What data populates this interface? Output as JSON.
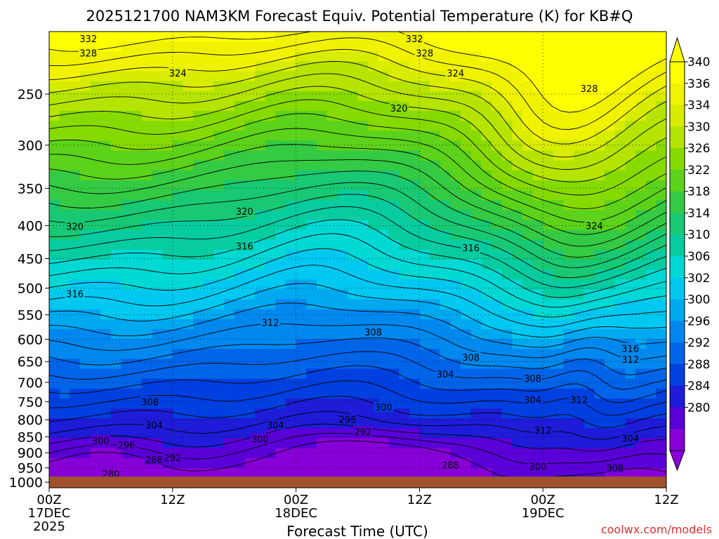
{
  "chart_data": {
    "type": "heatmap",
    "title": "2025121700 NAM3KM Forecast Equiv. Potential Temperature (K) for KB#Q",
    "xlabel": "Forecast Time (UTC)",
    "ylabel": "",
    "credit": "coolwx.com/models",
    "x_ticks": [
      {
        "hour": 0,
        "label": "00Z",
        "date": "17DEC",
        "year": "2025"
      },
      {
        "hour": 12,
        "label": "12Z",
        "date": "",
        "year": ""
      },
      {
        "hour": 24,
        "label": "00Z",
        "date": "18DEC",
        "year": ""
      },
      {
        "hour": 36,
        "label": "12Z",
        "date": "",
        "year": ""
      },
      {
        "hour": 48,
        "label": "00Z",
        "date": "19DEC",
        "year": ""
      },
      {
        "hour": 60,
        "label": "12Z",
        "date": "",
        "year": ""
      }
    ],
    "x_range_hours": [
      0,
      60
    ],
    "y_ticks": [
      250,
      300,
      350,
      400,
      450,
      500,
      550,
      600,
      650,
      700,
      750,
      800,
      850,
      900,
      950,
      1000
    ],
    "y_range_hpa": [
      200,
      1020
    ],
    "y_scale": "log-pressure",
    "colorbar": {
      "labels": [
        340,
        336,
        334,
        330,
        326,
        322,
        318,
        314,
        310,
        306,
        302,
        300,
        296,
        292,
        288,
        284,
        280
      ],
      "colors": [
        "#ffff00",
        "#f0f200",
        "#d8ec00",
        "#b4e400",
        "#86da00",
        "#5cd21a",
        "#34ca44",
        "#18c872",
        "#06cca0",
        "#00d8d4",
        "#00c8f0",
        "#00a8f0",
        "#0088ee",
        "#0064e8",
        "#0040e0",
        "#1e1cd8",
        "#5a00d8",
        "#8800d8"
      ],
      "extend": "both"
    },
    "contour_labels": [
      {
        "text": "332",
        "t": 3.8,
        "p": 205
      },
      {
        "text": "328",
        "t": 3.8,
        "p": 216
      },
      {
        "text": "324",
        "t": 12.5,
        "p": 232
      },
      {
        "text": "320",
        "t": 2.5,
        "p": 401
      },
      {
        "text": "316",
        "t": 2.5,
        "p": 510
      },
      {
        "text": "320",
        "t": 19.0,
        "p": 380
      },
      {
        "text": "316",
        "t": 19.0,
        "p": 430
      },
      {
        "text": "312",
        "t": 21.5,
        "p": 565
      },
      {
        "text": "308",
        "t": 9.8,
        "p": 750
      },
      {
        "text": "304",
        "t": 10.2,
        "p": 815
      },
      {
        "text": "300",
        "t": 5.0,
        "p": 862
      },
      {
        "text": "296",
        "t": 7.5,
        "p": 875
      },
      {
        "text": "288",
        "t": 10.2,
        "p": 923
      },
      {
        "text": "292",
        "t": 12.0,
        "p": 916
      },
      {
        "text": "280",
        "t": 6.0,
        "p": 970
      },
      {
        "text": "304",
        "t": 22.0,
        "p": 815
      },
      {
        "text": "300",
        "t": 20.5,
        "p": 857
      },
      {
        "text": "296",
        "t": 29.0,
        "p": 799
      },
      {
        "text": "292",
        "t": 30.5,
        "p": 835
      },
      {
        "text": "300",
        "t": 32.5,
        "p": 765
      },
      {
        "text": "308",
        "t": 31.5,
        "p": 585
      },
      {
        "text": "304",
        "t": 38.5,
        "p": 680
      },
      {
        "text": "308",
        "t": 41.0,
        "p": 640
      },
      {
        "text": "288",
        "t": 39.0,
        "p": 940
      },
      {
        "text": "332",
        "t": 35.5,
        "p": 205
      },
      {
        "text": "328",
        "t": 36.5,
        "p": 216
      },
      {
        "text": "324",
        "t": 39.5,
        "p": 232
      },
      {
        "text": "320",
        "t": 34.0,
        "p": 263
      },
      {
        "text": "316",
        "t": 41.0,
        "p": 433
      },
      {
        "text": "328",
        "t": 52.5,
        "p": 245
      },
      {
        "text": "324",
        "t": 53.0,
        "p": 400
      },
      {
        "text": "308",
        "t": 47.0,
        "p": 690
      },
      {
        "text": "304",
        "t": 47.0,
        "p": 745
      },
      {
        "text": "312",
        "t": 51.5,
        "p": 745
      },
      {
        "text": "312",
        "t": 48.0,
        "p": 830
      },
      {
        "text": "300",
        "t": 47.5,
        "p": 945
      },
      {
        "text": "316",
        "t": 56.5,
        "p": 620
      },
      {
        "text": "312",
        "t": 56.5,
        "p": 645
      },
      {
        "text": "304",
        "t": 56.5,
        "p": 855
      },
      {
        "text": "308",
        "t": 55.0,
        "p": 950
      }
    ]
  }
}
